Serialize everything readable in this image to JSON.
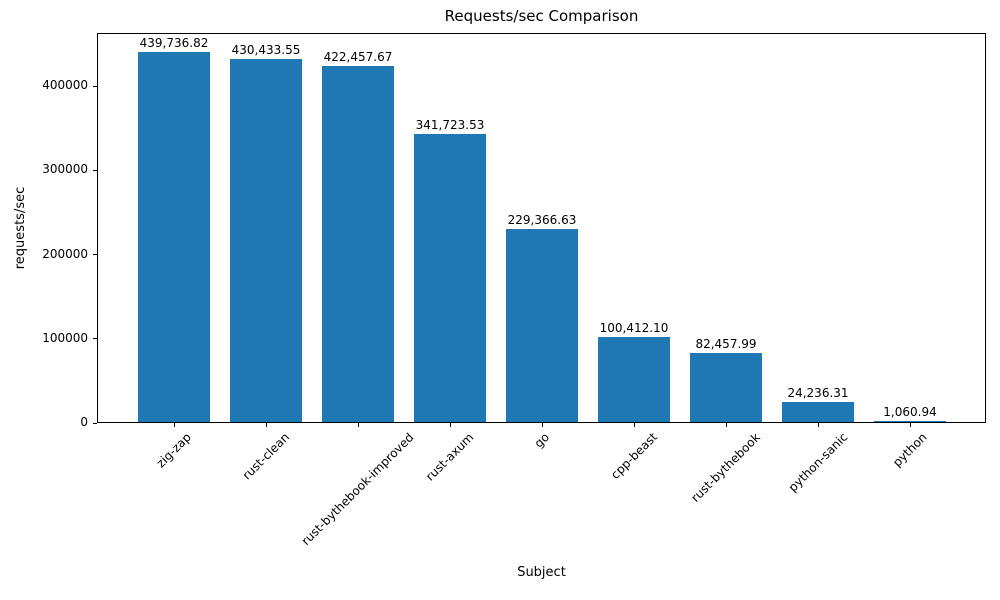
{
  "chart_data": {
    "type": "bar",
    "title": "Requests/sec Comparison",
    "xlabel": "Subject",
    "ylabel": "requests/sec",
    "categories": [
      "zig-zap",
      "rust-clean",
      "rust-bythebook-improved",
      "rust-axum",
      "go",
      "cpp-beast",
      "rust-bythebook",
      "python-sanic",
      "python"
    ],
    "values": [
      439736.82,
      430433.55,
      422457.67,
      341723.53,
      229366.63,
      100412.1,
      82457.99,
      24236.31,
      1060.94
    ],
    "value_labels": [
      "439,736.82",
      "430,433.55",
      "422,457.67",
      "341,723.53",
      "229,366.63",
      "100,412.10",
      "82,457.99",
      "24,236.31",
      "1,060.94"
    ],
    "yticks": [
      0,
      100000,
      200000,
      300000,
      400000
    ],
    "ytick_labels": [
      "0",
      "100000",
      "200000",
      "300000",
      "400000"
    ],
    "ylim": [
      0,
      463000
    ],
    "bar_color": "#1f77b4",
    "axis_color": "#000000",
    "background_color": "#ffffff",
    "grid": false,
    "legend": null,
    "x_tick_rotation_deg": 45
  }
}
